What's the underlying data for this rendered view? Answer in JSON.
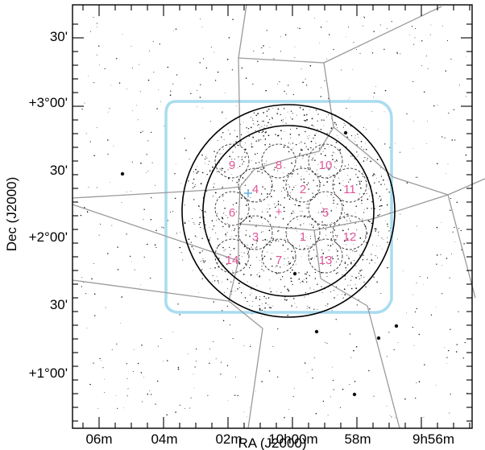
{
  "figure": {
    "x_axis_title": "RA (J2000)",
    "y_axis_title": "Dec (J2000)",
    "x_tick_labels": [
      "06m",
      "04m",
      "02m",
      "10h00m",
      "58m",
      "9h56m"
    ],
    "y_tick_labels": [
      "+1°00'",
      "30'",
      "+2°00'",
      "30'",
      "+3°00'",
      "30'"
    ],
    "field_labels": [
      "1",
      "2",
      "3",
      "4",
      "5",
      "6",
      "7",
      "8",
      "9",
      "10",
      "11",
      "12",
      "13",
      "14"
    ],
    "center_marker": "+",
    "coverage_color": "#a9dcf0",
    "field_label_color": "#e0569a",
    "circle_color": "#000000",
    "cell_line_color": "#9a9a9a"
  }
}
